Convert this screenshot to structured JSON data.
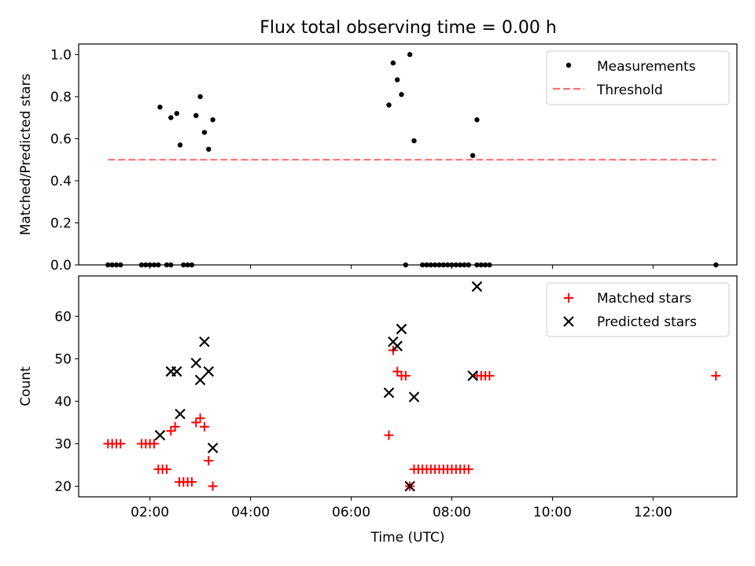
{
  "figure_title": "Flux total observing time = 0.00 h",
  "chart_data": [
    {
      "type": "scatter",
      "xlabel": "",
      "ylabel": "Matched/Predicted stars",
      "ylim": [
        0,
        1.05
      ],
      "yticks": [
        "0.0",
        "0.2",
        "0.4",
        "0.6",
        "0.8",
        "1.0"
      ],
      "grid": false,
      "legend_position": "top-right",
      "series": [
        {
          "name": "Measurements",
          "marker": "dot",
          "color": "#000000",
          "x": [
            "01:10",
            "01:15",
            "01:20",
            "01:25",
            "01:50",
            "01:55",
            "02:00",
            "02:05",
            "02:10",
            "02:20",
            "02:25",
            "02:40",
            "02:45",
            "02:50",
            "02:12",
            "02:25",
            "02:32",
            "02:36",
            "02:55",
            "03:00",
            "03:05",
            "03:10",
            "03:15",
            "06:45",
            "06:50",
            "06:55",
            "07:00",
            "07:10",
            "07:15",
            "07:05",
            "07:25",
            "07:30",
            "07:35",
            "07:40",
            "07:45",
            "07:50",
            "07:55",
            "08:00",
            "08:05",
            "08:10",
            "08:15",
            "08:20",
            "08:30",
            "08:35",
            "08:40",
            "08:45",
            "08:25",
            "08:30",
            "13:15"
          ],
          "y": [
            0,
            0,
            0,
            0,
            0,
            0,
            0,
            0,
            0,
            0,
            0,
            0,
            0,
            0,
            0.75,
            0.7,
            0.72,
            0.57,
            0.71,
            0.8,
            0.63,
            0.55,
            0.69,
            0.76,
            0.96,
            0.88,
            0.81,
            1.0,
            0.59,
            0,
            0,
            0,
            0,
            0,
            0,
            0,
            0,
            0,
            0,
            0,
            0,
            0,
            0,
            0,
            0,
            0,
            0.52,
            0.69,
            0
          ]
        },
        {
          "name": "Threshold",
          "marker": "dashed-line",
          "color": "#ff7070",
          "x": [
            "01:10",
            "13:15"
          ],
          "y": [
            0.5,
            0.5
          ]
        }
      ]
    },
    {
      "type": "scatter",
      "xlabel": "Time (UTC)",
      "ylabel": "Count",
      "ylim": [
        17.5,
        69.5
      ],
      "yticks": [
        "20",
        "30",
        "40",
        "50",
        "60"
      ],
      "xlim": [
        "00:35",
        "13:40"
      ],
      "xticks": [
        "02:00",
        "04:00",
        "06:00",
        "08:00",
        "10:00",
        "12:00"
      ],
      "grid": false,
      "legend_position": "top-right",
      "series": [
        {
          "name": "Matched stars",
          "marker": "plus",
          "color": "#ff0000",
          "x": [
            "01:10",
            "01:15",
            "01:20",
            "01:25",
            "01:50",
            "01:55",
            "02:00",
            "02:05",
            "02:10",
            "02:15",
            "02:20",
            "02:25",
            "02:30",
            "02:35",
            "02:40",
            "02:45",
            "02:50",
            "02:55",
            "03:00",
            "03:05",
            "03:10",
            "03:15",
            "06:45",
            "06:50",
            "06:55",
            "07:00",
            "07:05",
            "07:10",
            "07:15",
            "07:20",
            "07:25",
            "07:30",
            "07:35",
            "07:40",
            "07:45",
            "07:50",
            "07:55",
            "08:00",
            "08:05",
            "08:10",
            "08:15",
            "08:20",
            "08:30",
            "08:35",
            "08:40",
            "08:45",
            "13:15"
          ],
          "y": [
            30,
            30,
            30,
            30,
            30,
            30,
            30,
            30,
            24,
            24,
            24,
            33,
            34,
            21,
            21,
            21,
            21,
            35,
            36,
            34,
            26,
            20,
            32,
            52,
            47,
            46,
            46,
            20,
            24,
            24,
            24,
            24,
            24,
            24,
            24,
            24,
            24,
            24,
            24,
            24,
            24,
            24,
            46,
            46,
            46,
            46,
            46
          ]
        },
        {
          "name": "Predicted stars",
          "marker": "x",
          "color": "#000000",
          "x": [
            "02:12",
            "02:25",
            "02:32",
            "02:36",
            "02:55",
            "03:00",
            "03:05",
            "03:10",
            "03:15",
            "06:45",
            "06:50",
            "06:55",
            "07:00",
            "07:10",
            "07:15",
            "08:25",
            "08:30"
          ],
          "y": [
            32,
            47,
            47,
            37,
            49,
            45,
            54,
            47,
            29,
            42,
            54,
            53,
            57,
            20,
            41,
            46,
            67
          ]
        }
      ]
    }
  ]
}
